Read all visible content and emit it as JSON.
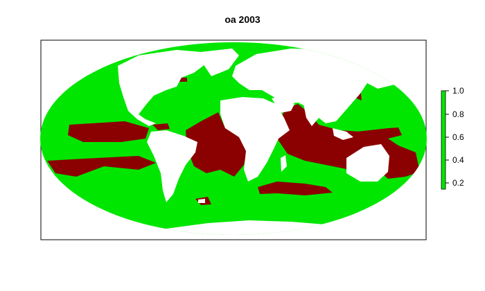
{
  "title": "oa 2003",
  "colors": {
    "ocean": "#00e600",
    "land": "#ffffff",
    "undersaturated": "#8b0000",
    "frame": "#000000"
  },
  "legend": {
    "ticks": [
      "1.0",
      "0.8",
      "0.6",
      "0.4",
      "0.2"
    ],
    "placement": "right",
    "range": [
      0.15,
      1.0
    ]
  },
  "map": {
    "projection": "mollweide",
    "extent": "global"
  }
}
